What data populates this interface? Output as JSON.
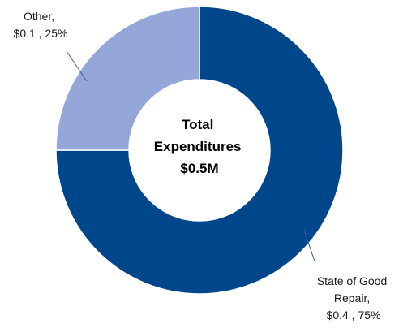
{
  "chart_data": {
    "type": "pie",
    "variant": "donut",
    "center_text": [
      "Total",
      "Expenditures",
      "$0.5M"
    ],
    "slices": [
      {
        "name": "State of Good Repair",
        "value": 0.4,
        "percent": 75,
        "color": "#00468b",
        "label_lines": [
          "State of Good",
          "Repair,",
          "$0.4 , 75%"
        ]
      },
      {
        "name": "Other",
        "value": 0.1,
        "percent": 25,
        "color": "#95a7d8",
        "label_lines": [
          "Other,",
          "$0.1 , 25%"
        ]
      }
    ],
    "legend": "none"
  }
}
